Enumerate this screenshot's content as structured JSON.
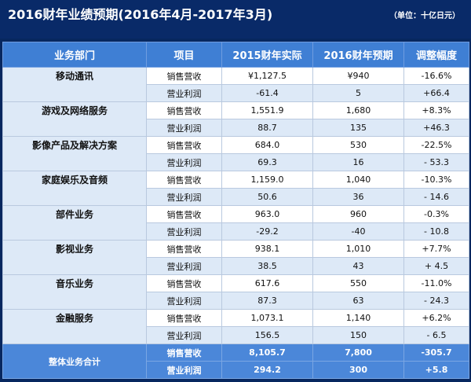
{
  "header": {
    "title": "2016财年业绩预期(2016年4月-2017年3月)",
    "unit": "（单位：十亿日元）"
  },
  "colors": {
    "title_bg": "#092a68",
    "header_bg": "#3f7fd4",
    "row_alt": "#dde9f7",
    "total_bg": "#4b87d9"
  },
  "table": {
    "columns": [
      "业务部门",
      "项目",
      "2015财年实际",
      "2016财年预期",
      "调整幅度"
    ],
    "rows": [
      {
        "dept": "移动通讯",
        "items": [
          {
            "item": "销售营收",
            "actual": "¥1,127.5",
            "forecast": "¥940",
            "change": "-16.6%"
          },
          {
            "item": "营业利润",
            "actual": "-61.4",
            "forecast": "5",
            "change": "+66.4"
          }
        ]
      },
      {
        "dept": "游戏及网络服务",
        "items": [
          {
            "item": "销售营收",
            "actual": "1,551.9",
            "forecast": "1,680",
            "change": "+8.3%"
          },
          {
            "item": "营业利润",
            "actual": "88.7",
            "forecast": "135",
            "change": "+46.3"
          }
        ]
      },
      {
        "dept": "影像产品及解决方案",
        "items": [
          {
            "item": "销售营收",
            "actual": "684.0",
            "forecast": "530",
            "change": "-22.5%"
          },
          {
            "item": "营业利润",
            "actual": "69.3",
            "forecast": "16",
            "change": "- 53.3"
          }
        ]
      },
      {
        "dept": "家庭娱乐及音频",
        "items": [
          {
            "item": "销售营收",
            "actual": "1,159.0",
            "forecast": "1,040",
            "change": "-10.3%"
          },
          {
            "item": "营业利润",
            "actual": "50.6",
            "forecast": "36",
            "change": "- 14.6"
          }
        ]
      },
      {
        "dept": "部件业务",
        "items": [
          {
            "item": "销售营收",
            "actual": "963.0",
            "forecast": "960",
            "change": "-0.3%"
          },
          {
            "item": "营业利润",
            "actual": "-29.2",
            "forecast": "-40",
            "change": "- 10.8"
          }
        ]
      },
      {
        "dept": "影视业务",
        "items": [
          {
            "item": "销售营收",
            "actual": "938.1",
            "forecast": "1,010",
            "change": "+7.7%"
          },
          {
            "item": "营业利润",
            "actual": "38.5",
            "forecast": "43",
            "change": "+ 4.5"
          }
        ]
      },
      {
        "dept": "音乐业务",
        "items": [
          {
            "item": "销售营收",
            "actual": "617.6",
            "forecast": "550",
            "change": "-11.0%"
          },
          {
            "item": "营业利润",
            "actual": "87.3",
            "forecast": "63",
            "change": "- 24.3"
          }
        ]
      },
      {
        "dept": "金融服务",
        "items": [
          {
            "item": "销售营收",
            "actual": "1,073.1",
            "forecast": "1,140",
            "change": "+6.2%"
          },
          {
            "item": "营业利润",
            "actual": "156.5",
            "forecast": "150",
            "change": "- 6.5"
          }
        ]
      }
    ],
    "total": {
      "dept": "整体业务合计",
      "items": [
        {
          "item": "销售营收",
          "actual": "8,105.7",
          "forecast": "7,800",
          "change": "-305.7"
        },
        {
          "item": "营业利润",
          "actual": "294.2",
          "forecast": "300",
          "change": "+5.8"
        }
      ]
    }
  }
}
